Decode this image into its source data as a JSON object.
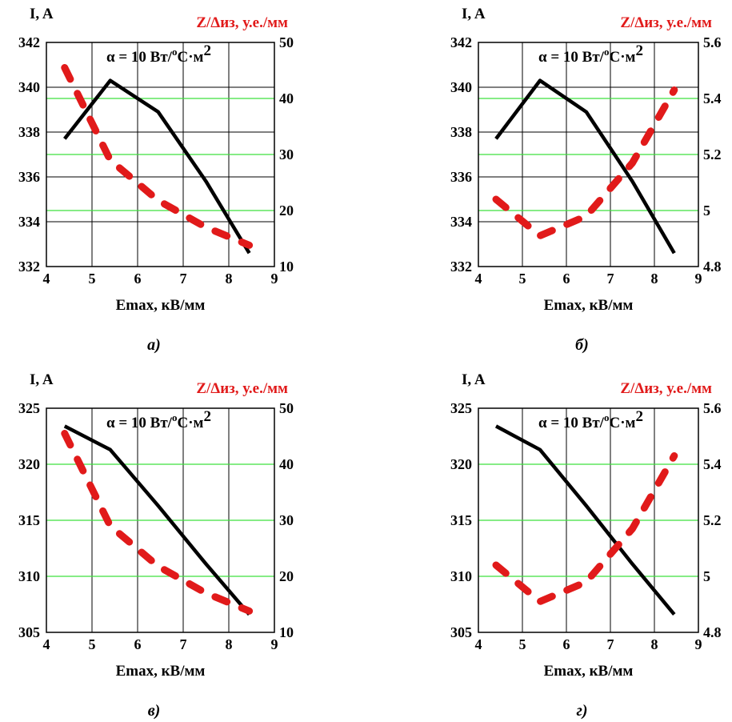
{
  "chart_data": [
    {
      "type": "line",
      "caption": "а)",
      "annotation": "α = 10 Вт/°С·м2",
      "xlabel": "Emax, кВ/мм",
      "ylabel_left": "I, A",
      "ylabel_right": "Z/Δиз, у.е./мм",
      "xlim": [
        4,
        9
      ],
      "xticks": [
        "4",
        "5",
        "6",
        "7",
        "8",
        "9"
      ],
      "ylim_left": [
        332,
        342
      ],
      "yticks_left": [
        "332",
        "334",
        "336",
        "338",
        "340",
        "342"
      ],
      "ylim_right": [
        10,
        50
      ],
      "yticks_right": [
        "10",
        "20",
        "30",
        "40",
        "50"
      ],
      "grid": true,
      "series": [
        {
          "axis": "left",
          "style": "solid",
          "color": "#000000",
          "x": [
            4.4,
            5.4,
            6.45,
            7.5,
            8.45
          ],
          "y": [
            337.7,
            340.3,
            338.9,
            335.8,
            332.6
          ]
        },
        {
          "axis": "right",
          "style": "dashed",
          "color": "#e11a1a",
          "x": [
            4.4,
            5.4,
            6.45,
            7.5,
            8.45
          ],
          "y": [
            45.5,
            29.0,
            21.8,
            17.0,
            13.8
          ]
        }
      ]
    },
    {
      "type": "line",
      "caption": "б)",
      "annotation": "α = 10 Вт/°С·м2",
      "xlabel": "Emax, кВ/мм",
      "ylabel_left": "I, A",
      "ylabel_right": "Z/Δиз, у.е./мм",
      "xlim": [
        4,
        9
      ],
      "xticks": [
        "4",
        "5",
        "6",
        "7",
        "8",
        "9"
      ],
      "ylim_left": [
        332,
        342
      ],
      "yticks_left": [
        "332",
        "334",
        "336",
        "338",
        "340",
        "342"
      ],
      "ylim_right": [
        4.8,
        5.6
      ],
      "yticks_right": [
        "4.8",
        "5",
        "5.2",
        "5.4",
        "5.6"
      ],
      "grid": true,
      "series": [
        {
          "axis": "left",
          "style": "solid",
          "color": "#000000",
          "x": [
            4.4,
            5.4,
            6.45,
            7.5,
            8.45
          ],
          "y": [
            337.7,
            340.3,
            338.9,
            335.8,
            332.6
          ]
        },
        {
          "axis": "right",
          "style": "dashed",
          "color": "#e11a1a",
          "x": [
            4.4,
            5.4,
            6.45,
            7.5,
            8.45
          ],
          "y": [
            5.04,
            4.91,
            4.98,
            5.17,
            5.43
          ]
        }
      ]
    },
    {
      "type": "line",
      "caption": "в)",
      "annotation": "α = 10 Вт/°С·м2",
      "xlabel": "Emax, кВ/мм",
      "ylabel_left": "I, A",
      "ylabel_right": "Z/Δиз, у.е./мм",
      "xlim": [
        4,
        9
      ],
      "xticks": [
        "4",
        "5",
        "6",
        "7",
        "8",
        "9"
      ],
      "ylim_left": [
        305,
        325
      ],
      "yticks_left": [
        "305",
        "310",
        "315",
        "320",
        "325"
      ],
      "ylim_right": [
        10,
        50
      ],
      "yticks_right": [
        "10",
        "20",
        "30",
        "40",
        "50"
      ],
      "grid": true,
      "series": [
        {
          "axis": "left",
          "style": "solid",
          "color": "#000000",
          "x": [
            4.4,
            5.4,
            6.45,
            7.5,
            8.45
          ],
          "y": [
            323.4,
            321.3,
            316.3,
            311.1,
            306.6
          ]
        },
        {
          "axis": "right",
          "style": "dashed",
          "color": "#e11a1a",
          "x": [
            4.4,
            5.4,
            6.45,
            7.5,
            8.45
          ],
          "y": [
            45.5,
            29.0,
            21.8,
            17.0,
            13.8
          ]
        }
      ]
    },
    {
      "type": "line",
      "caption": "г)",
      "annotation": "α = 10 Вт/°С·м2",
      "xlabel": "Emax, кВ/мм",
      "ylabel_left": "I, A",
      "ylabel_right": "Z/Δиз, у.е./мм",
      "xlim": [
        4,
        9
      ],
      "xticks": [
        "4",
        "5",
        "6",
        "7",
        "8",
        "9"
      ],
      "ylim_left": [
        305,
        325
      ],
      "yticks_left": [
        "305",
        "310",
        "315",
        "320",
        "325"
      ],
      "ylim_right": [
        4.8,
        5.6
      ],
      "yticks_right": [
        "4.8",
        "5",
        "5.2",
        "5.4",
        "5.6"
      ],
      "grid": true,
      "series": [
        {
          "axis": "left",
          "style": "solid",
          "color": "#000000",
          "x": [
            4.4,
            5.4,
            6.45,
            7.5,
            8.45
          ],
          "y": [
            323.4,
            321.3,
            316.3,
            311.1,
            306.6
          ]
        },
        {
          "axis": "right",
          "style": "dashed",
          "color": "#e11a1a",
          "x": [
            4.4,
            5.4,
            6.45,
            7.5,
            8.45
          ],
          "y": [
            5.04,
            4.91,
            4.98,
            5.17,
            5.43
          ]
        }
      ]
    }
  ]
}
